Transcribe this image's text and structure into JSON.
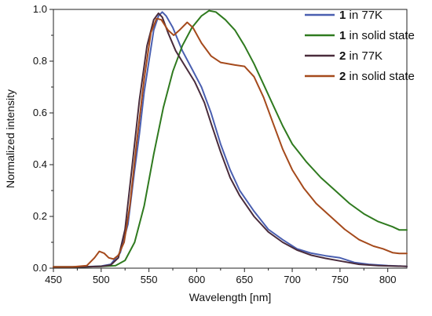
{
  "chart_data": {
    "type": "line",
    "xlabel": "Wavelength [nm]",
    "ylabel": "Normalized intensity",
    "xlim": [
      450,
      820
    ],
    "ylim": [
      0,
      1.0
    ],
    "x_ticks": [
      "450",
      "500",
      "550",
      "600",
      "650",
      "700",
      "750",
      "800"
    ],
    "y_ticks": [
      "0.0",
      "0.2",
      "0.4",
      "0.6",
      "0.8",
      "1.0"
    ],
    "legend_position": "top-right",
    "series": [
      {
        "compound": "1",
        "label_suffix": " in 77K",
        "color": "#4a5fb0",
        "points": [
          [
            450,
            0.005
          ],
          [
            480,
            0.005
          ],
          [
            500,
            0.008
          ],
          [
            510,
            0.015
          ],
          [
            520,
            0.06
          ],
          [
            528,
            0.17
          ],
          [
            535,
            0.38
          ],
          [
            540,
            0.52
          ],
          [
            545,
            0.68
          ],
          [
            550,
            0.8
          ],
          [
            555,
            0.92
          ],
          [
            560,
            0.975
          ],
          [
            564,
            0.99
          ],
          [
            568,
            0.975
          ],
          [
            575,
            0.93
          ],
          [
            585,
            0.84
          ],
          [
            595,
            0.77
          ],
          [
            605,
            0.7
          ],
          [
            615,
            0.6
          ],
          [
            625,
            0.48
          ],
          [
            635,
            0.38
          ],
          [
            645,
            0.3
          ],
          [
            660,
            0.22
          ],
          [
            675,
            0.15
          ],
          [
            690,
            0.11
          ],
          [
            705,
            0.075
          ],
          [
            720,
            0.058
          ],
          [
            735,
            0.048
          ],
          [
            750,
            0.04
          ],
          [
            765,
            0.022
          ],
          [
            780,
            0.015
          ],
          [
            800,
            0.01
          ],
          [
            820,
            0.007
          ]
        ]
      },
      {
        "compound": "1",
        "label_suffix": " in solid state",
        "color": "#2f7a1f",
        "points": [
          [
            450,
            0.005
          ],
          [
            480,
            0.005
          ],
          [
            500,
            0.007
          ],
          [
            515,
            0.01
          ],
          [
            525,
            0.03
          ],
          [
            535,
            0.1
          ],
          [
            545,
            0.24
          ],
          [
            555,
            0.44
          ],
          [
            565,
            0.62
          ],
          [
            575,
            0.76
          ],
          [
            585,
            0.86
          ],
          [
            595,
            0.93
          ],
          [
            605,
            0.975
          ],
          [
            613,
            0.995
          ],
          [
            620,
            0.99
          ],
          [
            630,
            0.96
          ],
          [
            640,
            0.92
          ],
          [
            650,
            0.86
          ],
          [
            660,
            0.79
          ],
          [
            670,
            0.71
          ],
          [
            680,
            0.63
          ],
          [
            690,
            0.55
          ],
          [
            700,
            0.48
          ],
          [
            715,
            0.41
          ],
          [
            730,
            0.35
          ],
          [
            745,
            0.3
          ],
          [
            760,
            0.25
          ],
          [
            775,
            0.21
          ],
          [
            790,
            0.18
          ],
          [
            805,
            0.16
          ],
          [
            812,
            0.148
          ],
          [
            820,
            0.148
          ]
        ]
      },
      {
        "compound": "2",
        "label_suffix": " in 77K",
        "color": "#4a2c3c",
        "points": [
          [
            450,
            0.005
          ],
          [
            480,
            0.005
          ],
          [
            500,
            0.007
          ],
          [
            510,
            0.012
          ],
          [
            518,
            0.04
          ],
          [
            525,
            0.15
          ],
          [
            532,
            0.38
          ],
          [
            540,
            0.65
          ],
          [
            548,
            0.86
          ],
          [
            555,
            0.96
          ],
          [
            560,
            0.985
          ],
          [
            564,
            0.97
          ],
          [
            570,
            0.91
          ],
          [
            578,
            0.84
          ],
          [
            588,
            0.78
          ],
          [
            598,
            0.72
          ],
          [
            608,
            0.64
          ],
          [
            615,
            0.56
          ],
          [
            625,
            0.45
          ],
          [
            635,
            0.35
          ],
          [
            645,
            0.28
          ],
          [
            660,
            0.2
          ],
          [
            675,
            0.14
          ],
          [
            690,
            0.1
          ],
          [
            705,
            0.07
          ],
          [
            720,
            0.05
          ],
          [
            735,
            0.038
          ],
          [
            750,
            0.028
          ],
          [
            770,
            0.015
          ],
          [
            790,
            0.01
          ],
          [
            820,
            0.007
          ]
        ]
      },
      {
        "compound": "2",
        "label_suffix": " in solid state",
        "color": "#a54a1c",
        "points": [
          [
            450,
            0.005
          ],
          [
            470,
            0.005
          ],
          [
            485,
            0.01
          ],
          [
            493,
            0.04
          ],
          [
            498,
            0.065
          ],
          [
            503,
            0.058
          ],
          [
            508,
            0.04
          ],
          [
            513,
            0.035
          ],
          [
            518,
            0.05
          ],
          [
            524,
            0.1
          ],
          [
            530,
            0.24
          ],
          [
            537,
            0.48
          ],
          [
            545,
            0.73
          ],
          [
            552,
            0.91
          ],
          [
            558,
            0.965
          ],
          [
            563,
            0.96
          ],
          [
            570,
            0.92
          ],
          [
            576,
            0.9
          ],
          [
            582,
            0.92
          ],
          [
            590,
            0.95
          ],
          [
            596,
            0.93
          ],
          [
            605,
            0.87
          ],
          [
            615,
            0.82
          ],
          [
            625,
            0.795
          ],
          [
            640,
            0.785
          ],
          [
            650,
            0.78
          ],
          [
            660,
            0.74
          ],
          [
            670,
            0.66
          ],
          [
            680,
            0.56
          ],
          [
            690,
            0.46
          ],
          [
            700,
            0.38
          ],
          [
            712,
            0.31
          ],
          [
            725,
            0.25
          ],
          [
            740,
            0.2
          ],
          [
            755,
            0.15
          ],
          [
            770,
            0.11
          ],
          [
            785,
            0.085
          ],
          [
            795,
            0.075
          ],
          [
            805,
            0.06
          ],
          [
            812,
            0.057
          ],
          [
            820,
            0.057
          ]
        ]
      }
    ]
  }
}
